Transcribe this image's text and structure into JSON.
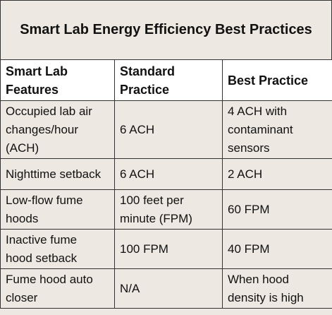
{
  "title": "Smart Lab Energy Efficiency Best Practices",
  "table": {
    "headers": [
      "Smart Lab Features",
      "Standard Practice",
      "Best Practice"
    ],
    "rows": [
      {
        "feature": "Occupied lab air changes/hour (ACH)",
        "standard": "6 ACH",
        "best": "4 ACH with contaminant sensors"
      },
      {
        "feature": "Nighttime setback",
        "standard": "6 ACH",
        "best": "2 ACH"
      },
      {
        "feature": "Low-flow fume hoods",
        "standard": "100 feet per minute (FPM)",
        "best": "60 FPM"
      },
      {
        "feature": "Inactive fume hood setback",
        "standard": "100 FPM",
        "best": "40 FPM"
      },
      {
        "feature": "Fume hood auto closer",
        "standard": "N/A",
        "best": "When hood density is high"
      }
    ]
  }
}
